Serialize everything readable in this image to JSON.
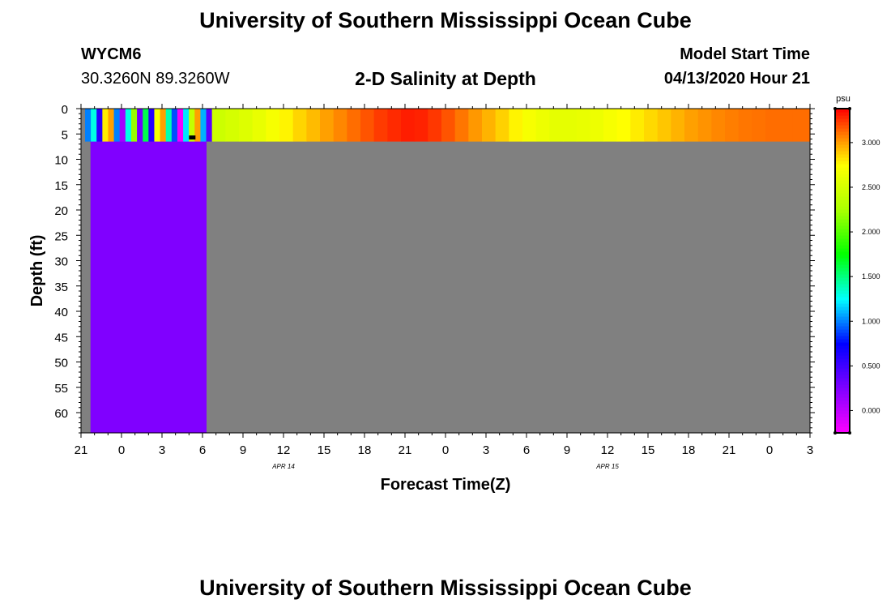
{
  "header": {
    "title": "University of Southern Mississippi Ocean Cube",
    "station": "WYCM6",
    "coords": "30.3260N 89.3260W",
    "plot_title": "2-D Salinity at Depth",
    "model_label": "Model Start Time",
    "model_time": "04/13/2020 Hour 21"
  },
  "footer": {
    "title": "University of Southern Mississippi Ocean Cube"
  },
  "colors": {
    "nodata": "#808080",
    "zero_salinity": "#8000ff",
    "marker": "#000000"
  },
  "chart_data": {
    "type": "heatmap",
    "title": "2-D Salinity at Depth",
    "xlabel": "Forecast Time(Z)",
    "ylabel": "Depth (ft)",
    "x_tick_labels": [
      "21",
      "0",
      "3",
      "6",
      "9",
      "12",
      "15",
      "18",
      "21",
      "0",
      "3",
      "6",
      "9",
      "12",
      "15",
      "18",
      "21",
      "0",
      "3"
    ],
    "date_labels": [
      {
        "label": "APR 14",
        "hour": 12
      },
      {
        "label": "APR 15",
        "hour": 36
      }
    ],
    "xlim_hours": [
      -3,
      51
    ],
    "y_ticks": [
      0,
      5,
      10,
      15,
      20,
      25,
      30,
      35,
      40,
      45,
      50,
      55,
      60
    ],
    "ylim": [
      0,
      64
    ],
    "surface_layer_depth": 6.5,
    "zero_region_end_hour": 6.3,
    "zero_region_start_hour": -2.3,
    "colorbar": {
      "unit": "psu",
      "ticks": [
        "0.000",
        "0.500",
        "1.000",
        "1.500",
        "2.000",
        "2.500",
        "3.000"
      ],
      "range": [
        -0.25,
        3.38
      ]
    },
    "surface_salinity": {
      "hours": [
        6.7,
        7.7,
        8.7,
        9.7,
        10.7,
        11.7,
        12.7,
        13.7,
        14.7,
        15.7,
        16.7,
        17.7,
        18.7,
        19.7,
        20.7,
        21.7,
        22.7,
        23.7,
        24.7,
        25.7,
        26.7,
        27.7,
        28.7,
        29.7,
        30.7,
        31.7,
        32.7,
        33.7,
        34.7,
        35.7,
        36.7,
        37.7,
        38.7,
        39.7,
        40.7,
        41.7,
        42.7,
        43.7,
        44.7,
        45.7,
        46.7,
        47.7,
        48.7,
        49.7,
        50.7
      ],
      "values": [
        2.45,
        2.5,
        2.55,
        2.62,
        2.7,
        2.78,
        2.86,
        2.93,
        3.0,
        3.06,
        3.12,
        3.18,
        3.24,
        3.28,
        3.31,
        3.3,
        3.25,
        3.18,
        3.1,
        3.02,
        2.95,
        2.87,
        2.78,
        2.7,
        2.65,
        2.6,
        2.6,
        2.62,
        2.65,
        2.7,
        2.75,
        2.8,
        2.85,
        2.9,
        2.95,
        3.0,
        3.03,
        3.06,
        3.08,
        3.1,
        3.11,
        3.12,
        3.12,
        3.12,
        3.12
      ]
    }
  }
}
